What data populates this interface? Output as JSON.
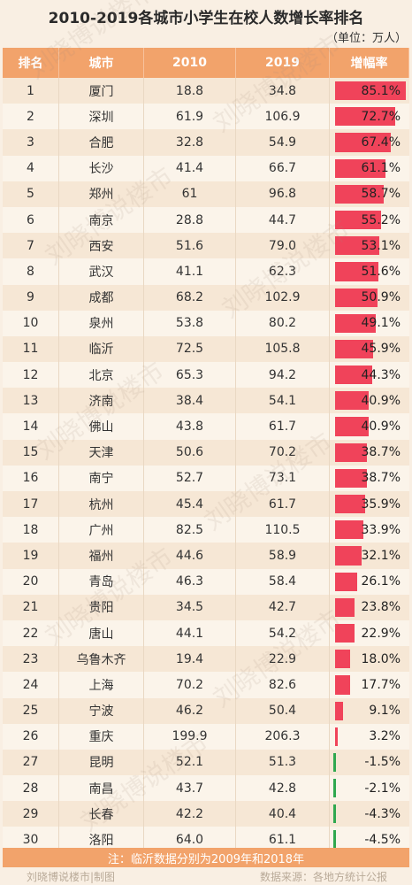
{
  "title": "2010-2019各城市小学生在校人数增长率排名",
  "unit": "（单位：万人）",
  "headers": {
    "rank": "排名",
    "city": "城市",
    "y2010": "2010",
    "y2019": "2019",
    "rate": "增幅率"
  },
  "note": "注：临沂数据分别为2009年和2018年",
  "credit_left": "刘晓博说楼市|制图",
  "credit_right": "数据来源：各地方统计公报",
  "watermark": "刘晓博说楼市",
  "colors": {
    "positive": "#f0435a",
    "negative": "#2fa84f",
    "header": "#f2a36b"
  },
  "chart_data": {
    "type": "table",
    "columns": [
      "排名",
      "城市",
      "2010",
      "2019",
      "增幅率"
    ],
    "rows": [
      {
        "rank": "1",
        "city": "厦门",
        "v2010": "18.8",
        "v2019": "34.8",
        "rate": "85.1%",
        "rate_value": 85.1
      },
      {
        "rank": "2",
        "city": "深圳",
        "v2010": "61.9",
        "v2019": "106.9",
        "rate": "72.7%",
        "rate_value": 72.7
      },
      {
        "rank": "3",
        "city": "合肥",
        "v2010": "32.8",
        "v2019": "54.9",
        "rate": "67.4%",
        "rate_value": 67.4
      },
      {
        "rank": "4",
        "city": "长沙",
        "v2010": "41.4",
        "v2019": "66.7",
        "rate": "61.1%",
        "rate_value": 61.1
      },
      {
        "rank": "5",
        "city": "郑州",
        "v2010": "61",
        "v2019": "96.8",
        "rate": "58.7%",
        "rate_value": 58.7
      },
      {
        "rank": "6",
        "city": "南京",
        "v2010": "28.8",
        "v2019": "44.7",
        "rate": "55.2%",
        "rate_value": 55.2
      },
      {
        "rank": "7",
        "city": "西安",
        "v2010": "51.6",
        "v2019": "79.0",
        "rate": "53.1%",
        "rate_value": 53.1
      },
      {
        "rank": "8",
        "city": "武汉",
        "v2010": "41.1",
        "v2019": "62.3",
        "rate": "51.6%",
        "rate_value": 51.6
      },
      {
        "rank": "9",
        "city": "成都",
        "v2010": "68.2",
        "v2019": "102.9",
        "rate": "50.9%",
        "rate_value": 50.9
      },
      {
        "rank": "10",
        "city": "泉州",
        "v2010": "53.8",
        "v2019": "80.2",
        "rate": "49.1%",
        "rate_value": 49.1
      },
      {
        "rank": "11",
        "city": "临沂",
        "v2010": "72.5",
        "v2019": "105.8",
        "rate": "45.9%",
        "rate_value": 45.9
      },
      {
        "rank": "12",
        "city": "北京",
        "v2010": "65.3",
        "v2019": "94.2",
        "rate": "44.3%",
        "rate_value": 44.3
      },
      {
        "rank": "13",
        "city": "济南",
        "v2010": "38.4",
        "v2019": "54.1",
        "rate": "40.9%",
        "rate_value": 40.9
      },
      {
        "rank": "14",
        "city": "佛山",
        "v2010": "43.8",
        "v2019": "61.7",
        "rate": "40.9%",
        "rate_value": 40.9
      },
      {
        "rank": "15",
        "city": "天津",
        "v2010": "50.6",
        "v2019": "70.2",
        "rate": "38.7%",
        "rate_value": 38.7
      },
      {
        "rank": "16",
        "city": "南宁",
        "v2010": "52.7",
        "v2019": "73.1",
        "rate": "38.7%",
        "rate_value": 38.7
      },
      {
        "rank": "17",
        "city": "杭州",
        "v2010": "45.4",
        "v2019": "61.7",
        "rate": "35.9%",
        "rate_value": 35.9
      },
      {
        "rank": "18",
        "city": "广州",
        "v2010": "82.5",
        "v2019": "110.5",
        "rate": "33.9%",
        "rate_value": 33.9
      },
      {
        "rank": "19",
        "city": "福州",
        "v2010": "44.6",
        "v2019": "58.9",
        "rate": "32.1%",
        "rate_value": 32.1
      },
      {
        "rank": "20",
        "city": "青岛",
        "v2010": "46.3",
        "v2019": "58.4",
        "rate": "26.1%",
        "rate_value": 26.1
      },
      {
        "rank": "21",
        "city": "贵阳",
        "v2010": "34.5",
        "v2019": "42.7",
        "rate": "23.8%",
        "rate_value": 23.8
      },
      {
        "rank": "22",
        "city": "唐山",
        "v2010": "44.1",
        "v2019": "54.2",
        "rate": "22.9%",
        "rate_value": 22.9
      },
      {
        "rank": "23",
        "city": "乌鲁木齐",
        "v2010": "19.4",
        "v2019": "22.9",
        "rate": "18.0%",
        "rate_value": 18.0
      },
      {
        "rank": "24",
        "city": "上海",
        "v2010": "70.2",
        "v2019": "82.6",
        "rate": "17.7%",
        "rate_value": 17.7
      },
      {
        "rank": "25",
        "city": "宁波",
        "v2010": "46.2",
        "v2019": "50.4",
        "rate": "9.1%",
        "rate_value": 9.1
      },
      {
        "rank": "26",
        "city": "重庆",
        "v2010": "199.9",
        "v2019": "206.3",
        "rate": "3.2%",
        "rate_value": 3.2
      },
      {
        "rank": "27",
        "city": "昆明",
        "v2010": "52.1",
        "v2019": "51.3",
        "rate": "-1.5%",
        "rate_value": -1.5
      },
      {
        "rank": "28",
        "city": "南昌",
        "v2010": "43.7",
        "v2019": "42.8",
        "rate": "-2.1%",
        "rate_value": -2.1
      },
      {
        "rank": "29",
        "city": "长春",
        "v2010": "42.2",
        "v2019": "40.4",
        "rate": "-4.3%",
        "rate_value": -4.3
      },
      {
        "rank": "30",
        "city": "洛阳",
        "v2010": "64.0",
        "v2019": "61.1",
        "rate": "-4.5%",
        "rate_value": -4.5
      }
    ],
    "bar_max": 85.1
  }
}
